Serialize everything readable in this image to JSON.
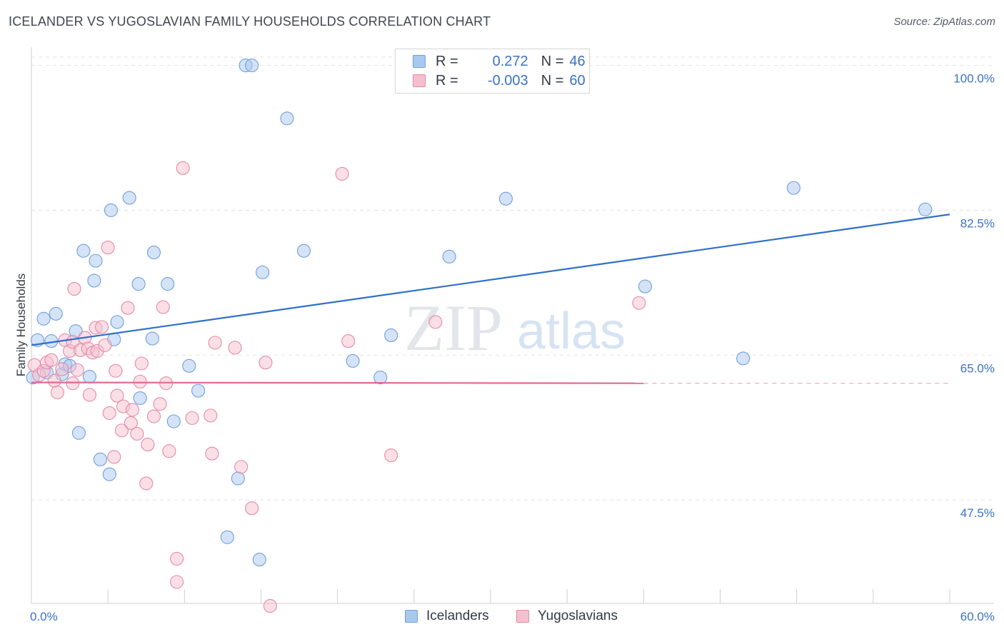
{
  "title": "ICELANDER VS YUGOSLAVIAN FAMILY HOUSEHOLDS CORRELATION CHART",
  "source": "Source: ZipAtlas.com",
  "watermark": {
    "zip": "ZIP",
    "atlas": "atlas"
  },
  "legend": {
    "rows": [
      {
        "r_label": "R =",
        "r_value": "0.272",
        "n_label": "N =",
        "n_value": "46",
        "color": "#a9c8f0",
        "edge": "#6f9fd8"
      },
      {
        "r_label": "R =",
        "r_value": "-0.003",
        "n_label": "N =",
        "n_value": "60",
        "color": "#f6bfd0",
        "edge": "#e48aa6"
      }
    ]
  },
  "bottom_legend": [
    {
      "label": "Icelanders",
      "color": "#a9c8f0",
      "edge": "#6f9fd8"
    },
    {
      "label": "Yugoslavians",
      "color": "#f6bfd0",
      "edge": "#e48aa6"
    }
  ],
  "chart_data": {
    "type": "scatter",
    "title": "ICELANDER VS YUGOSLAVIAN FAMILY HOUSEHOLDS CORRELATION CHART",
    "xlabel": "",
    "ylabel": "Family Households",
    "xlim": [
      0,
      60
    ],
    "ylim": [
      35,
      101
    ],
    "x_tick_labels": [
      "0.0%",
      "60.0%"
    ],
    "y_tick_labels": [
      "100.0%",
      "82.5%",
      "65.0%",
      "47.5%"
    ],
    "y_ticks": [
      100,
      82.5,
      65,
      47.5
    ],
    "grid": true,
    "series": [
      {
        "name": "Icelanders",
        "color": "#6f9fd8",
        "fill": "#a9c8f0",
        "trend_color": "#2f6fcc",
        "trend": {
          "x_start": 0,
          "y_start": 66.2,
          "x_end": 60,
          "y_end": 82.0,
          "dashed_after": null
        },
        "points": [
          [
            0.1,
            62.3
          ],
          [
            0.4,
            66.8
          ],
          [
            0.8,
            69.4
          ],
          [
            1.0,
            62.9
          ],
          [
            1.3,
            66.7
          ],
          [
            1.6,
            70.0
          ],
          [
            2.0,
            62.7
          ],
          [
            2.2,
            63.9
          ],
          [
            2.5,
            63.7
          ],
          [
            2.9,
            67.9
          ],
          [
            3.1,
            55.6
          ],
          [
            3.4,
            77.6
          ],
          [
            3.8,
            62.4
          ],
          [
            4.1,
            74.0
          ],
          [
            4.2,
            76.4
          ],
          [
            4.5,
            52.4
          ],
          [
            5.1,
            50.6
          ],
          [
            5.2,
            82.5
          ],
          [
            5.4,
            66.9
          ],
          [
            5.6,
            69.0
          ],
          [
            6.4,
            84.0
          ],
          [
            7.0,
            73.6
          ],
          [
            7.1,
            59.8
          ],
          [
            7.9,
            67.0
          ],
          [
            8.0,
            77.4
          ],
          [
            8.9,
            73.6
          ],
          [
            9.3,
            57.0
          ],
          [
            10.3,
            63.7
          ],
          [
            10.9,
            60.7
          ],
          [
            12.8,
            43.0
          ],
          [
            13.5,
            50.1
          ],
          [
            14.0,
            100.0
          ],
          [
            14.4,
            100.0
          ],
          [
            14.9,
            40.3
          ],
          [
            15.1,
            75.0
          ],
          [
            16.7,
            93.6
          ],
          [
            17.8,
            77.6
          ],
          [
            21.0,
            64.3
          ],
          [
            22.8,
            62.3
          ],
          [
            23.5,
            67.4
          ],
          [
            27.3,
            76.9
          ],
          [
            31.0,
            83.9
          ],
          [
            40.1,
            73.3
          ],
          [
            46.5,
            64.6
          ],
          [
            49.8,
            85.2
          ],
          [
            58.4,
            82.6
          ]
        ]
      },
      {
        "name": "Yugoslavians",
        "color": "#e48aa6",
        "fill": "#f6bfd0",
        "trend_color": "#e2698f",
        "trend": {
          "x_start": 0,
          "y_start": 61.7,
          "x_end": 40.0,
          "y_end": 61.6,
          "dashed_after": 60
        },
        "points": [
          [
            0.2,
            63.8
          ],
          [
            0.5,
            62.6
          ],
          [
            0.8,
            63.1
          ],
          [
            1.0,
            64.1
          ],
          [
            1.3,
            64.4
          ],
          [
            1.5,
            61.9
          ],
          [
            1.7,
            60.5
          ],
          [
            2.0,
            63.3
          ],
          [
            2.2,
            66.8
          ],
          [
            2.5,
            65.5
          ],
          [
            2.7,
            66.6
          ],
          [
            2.7,
            61.6
          ],
          [
            2.8,
            73.0
          ],
          [
            3.0,
            63.2
          ],
          [
            3.2,
            65.6
          ],
          [
            3.5,
            67.1
          ],
          [
            3.7,
            65.8
          ],
          [
            3.8,
            60.2
          ],
          [
            4.0,
            65.3
          ],
          [
            4.2,
            68.3
          ],
          [
            4.3,
            65.5
          ],
          [
            4.6,
            68.4
          ],
          [
            4.8,
            66.2
          ],
          [
            5.0,
            78.0
          ],
          [
            5.1,
            58.0
          ],
          [
            5.4,
            52.7
          ],
          [
            5.5,
            63.1
          ],
          [
            5.6,
            60.1
          ],
          [
            5.9,
            55.9
          ],
          [
            6.0,
            58.8
          ],
          [
            6.3,
            70.7
          ],
          [
            6.5,
            56.8
          ],
          [
            6.6,
            58.4
          ],
          [
            6.9,
            55.5
          ],
          [
            7.1,
            61.8
          ],
          [
            7.2,
            64.0
          ],
          [
            7.5,
            49.5
          ],
          [
            7.6,
            54.2
          ],
          [
            8.0,
            57.6
          ],
          [
            8.4,
            59.1
          ],
          [
            8.6,
            70.8
          ],
          [
            8.8,
            61.6
          ],
          [
            9.0,
            53.4
          ],
          [
            9.5,
            40.4
          ],
          [
            9.5,
            37.6
          ],
          [
            9.9,
            87.6
          ],
          [
            10.5,
            57.4
          ],
          [
            11.7,
            57.7
          ],
          [
            11.8,
            53.1
          ],
          [
            13.3,
            65.9
          ],
          [
            13.7,
            51.5
          ],
          [
            14.4,
            46.5
          ],
          [
            15.3,
            64.1
          ],
          [
            15.6,
            34.7
          ],
          [
            20.3,
            86.9
          ],
          [
            20.7,
            66.7
          ],
          [
            23.5,
            52.9
          ],
          [
            26.4,
            69.0
          ],
          [
            39.7,
            71.3
          ],
          [
            12.0,
            66.5
          ]
        ]
      }
    ]
  }
}
